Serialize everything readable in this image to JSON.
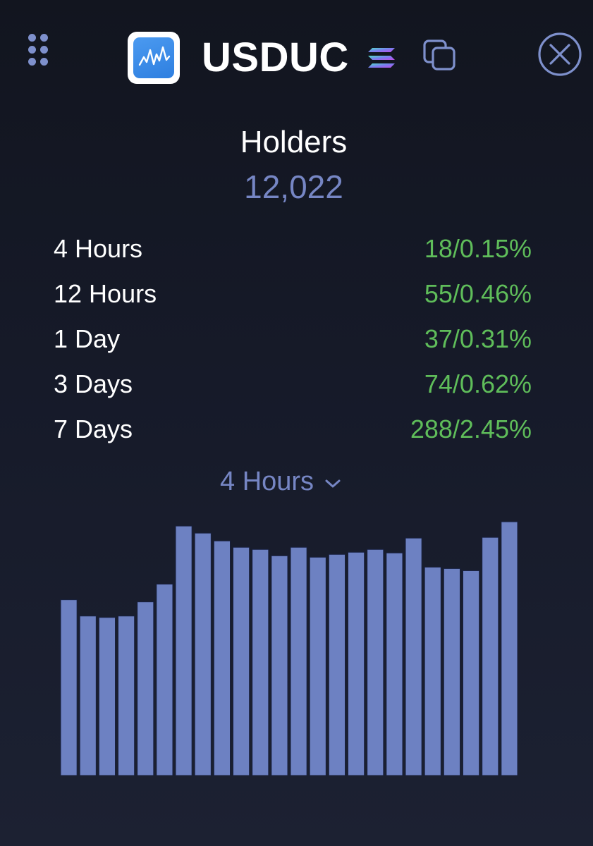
{
  "header": {
    "token_name": "USDUC",
    "menu_icon": "grid-dots-icon",
    "logo_icon": "waveform-logo-icon",
    "chain_icon": "solana-icon",
    "copy_icon": "copy-icon",
    "close_icon": "close-icon"
  },
  "holders": {
    "title": "Holders",
    "count": "12,022"
  },
  "stats": [
    {
      "label": "4 Hours",
      "value": "18/0.15%"
    },
    {
      "label": "12 Hours",
      "value": "55/0.46%"
    },
    {
      "label": "1 Day",
      "value": "37/0.31%"
    },
    {
      "label": "3 Days",
      "value": "74/0.62%"
    },
    {
      "label": "7 Days",
      "value": "288/2.45%"
    }
  ],
  "period_selector": {
    "selected": "4 Hours",
    "icon": "chevron-down-icon"
  },
  "colors": {
    "background": "#141824",
    "accent": "#7686c4",
    "positive": "#5fbd5a",
    "bar": "#6d81c2",
    "bar_outline": "#18203f"
  },
  "chart_data": {
    "type": "bar",
    "values": [
      248,
      225,
      223,
      225,
      245,
      270,
      352,
      342,
      331,
      322,
      319,
      310,
      322,
      308,
      312,
      315,
      319,
      314,
      335,
      294,
      292,
      289,
      336,
      358
    ],
    "ylim": [
      0,
      370
    ],
    "grid": false
  }
}
